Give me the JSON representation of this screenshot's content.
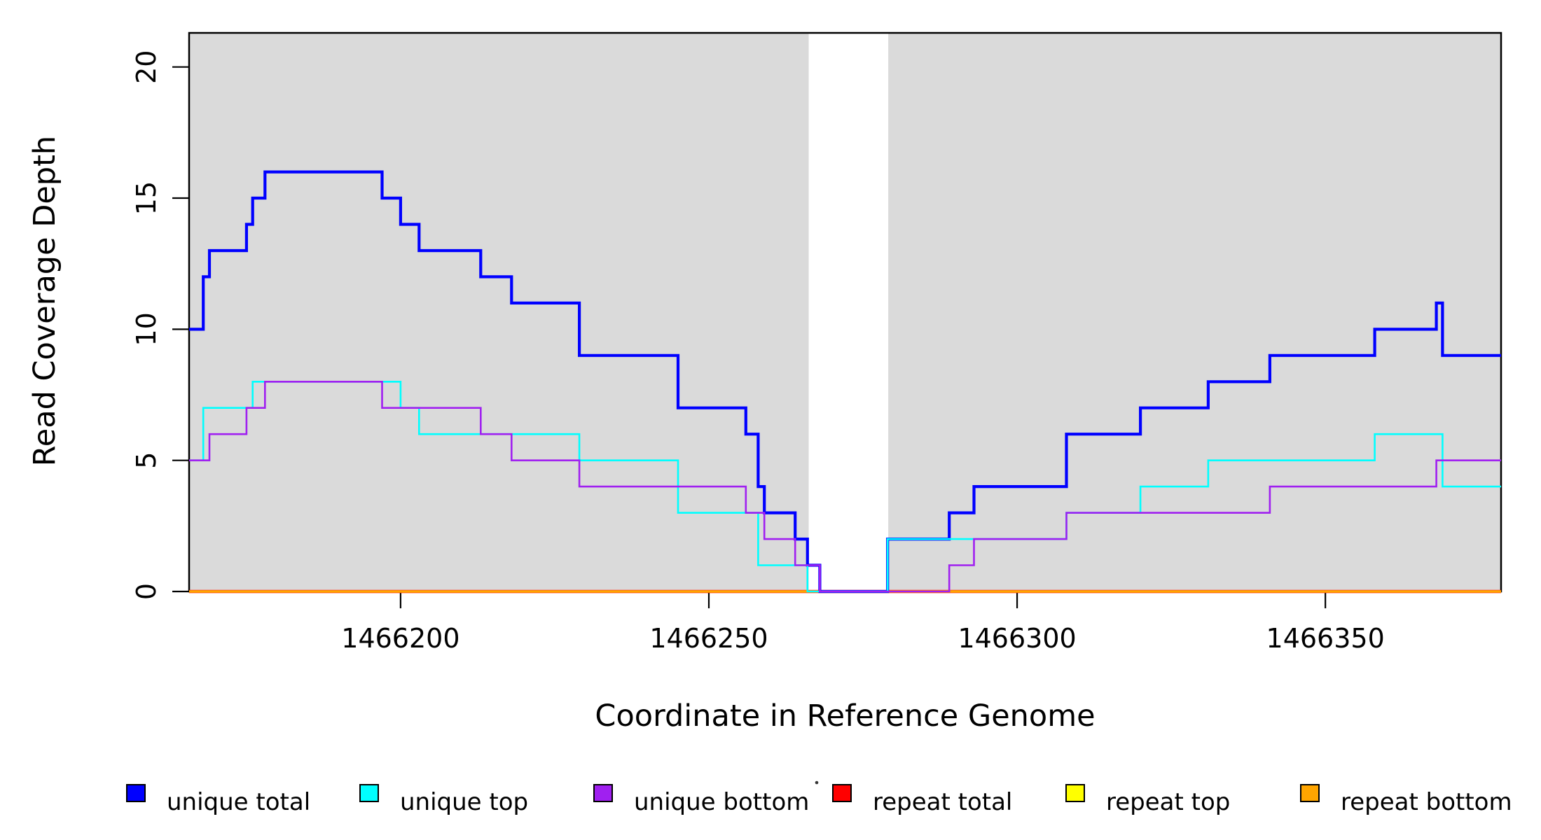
{
  "chart_data": {
    "type": "line",
    "subtype": "step-coverage-plot",
    "title": "",
    "xlabel": "Coordinate in Reference Genome",
    "ylabel": "Read Coverage Depth",
    "xlim": [
      1466165.7,
      1466378.5
    ],
    "ylim": [
      0,
      21.3
    ],
    "grid": false,
    "background_color": "#ffffff",
    "shaded_region_color": "#DADADA",
    "shaded_regions": [
      [
        1466165.7,
        1466266.2
      ],
      [
        1466279.1,
        1466378.5
      ]
    ],
    "x_ticks": [
      {
        "value": 1466200,
        "label": "1466200"
      },
      {
        "value": 1466250,
        "label": "1466250"
      },
      {
        "value": 1466300,
        "label": "1466300"
      },
      {
        "value": 1466350,
        "label": "1466350"
      }
    ],
    "y_ticks": [
      {
        "value": 0,
        "label": "0"
      },
      {
        "value": 5,
        "label": "5"
      },
      {
        "value": 10,
        "label": "10"
      },
      {
        "value": 15,
        "label": "15"
      },
      {
        "value": 20,
        "label": "20"
      }
    ],
    "series": [
      {
        "name": "unique total",
        "color": "#0000FF",
        "start_value": 10,
        "steps": [
          [
            1466168,
            12
          ],
          [
            1466169,
            13
          ],
          [
            1466175,
            14
          ],
          [
            1466176,
            15
          ],
          [
            1466178,
            16
          ],
          [
            1466197,
            15
          ],
          [
            1466200,
            14
          ],
          [
            1466203,
            13
          ],
          [
            1466213,
            12
          ],
          [
            1466218,
            11
          ],
          [
            1466229,
            9
          ],
          [
            1466245,
            7
          ],
          [
            1466256,
            6
          ],
          [
            1466258,
            4
          ],
          [
            1466259,
            3
          ],
          [
            1466264,
            2
          ],
          [
            1466266,
            1
          ],
          [
            1466268,
            0
          ],
          [
            1466279,
            2
          ],
          [
            1466289,
            3
          ],
          [
            1466293,
            4
          ],
          [
            1466308,
            6
          ],
          [
            1466320,
            7
          ],
          [
            1466331,
            8
          ],
          [
            1466341,
            9
          ],
          [
            1466358,
            10
          ],
          [
            1466368,
            11
          ],
          [
            1466369,
            9
          ]
        ]
      },
      {
        "name": "unique top",
        "color": "#00FFFF",
        "start_value": 5,
        "steps": [
          [
            1466168,
            7
          ],
          [
            1466176,
            8
          ],
          [
            1466200,
            7
          ],
          [
            1466203,
            6
          ],
          [
            1466229,
            5
          ],
          [
            1466245,
            3
          ],
          [
            1466258,
            1
          ],
          [
            1466266,
            0
          ],
          [
            1466279,
            2
          ],
          [
            1466308,
            3
          ],
          [
            1466320,
            4
          ],
          [
            1466331,
            5
          ],
          [
            1466358,
            6
          ],
          [
            1466369,
            4
          ]
        ]
      },
      {
        "name": "unique bottom",
        "color": "#A020F0",
        "start_value": 5,
        "steps": [
          [
            1466169,
            6
          ],
          [
            1466175,
            7
          ],
          [
            1466178,
            8
          ],
          [
            1466197,
            7
          ],
          [
            1466213,
            6
          ],
          [
            1466218,
            5
          ],
          [
            1466229,
            4
          ],
          [
            1466256,
            3
          ],
          [
            1466259,
            2
          ],
          [
            1466264,
            1
          ],
          [
            1466268,
            0
          ],
          [
            1466289,
            1
          ],
          [
            1466293,
            2
          ],
          [
            1466308,
            3
          ],
          [
            1466341,
            4
          ],
          [
            1466368,
            5
          ]
        ]
      },
      {
        "name": "repeat total",
        "color": "#FF0000",
        "start_value": 0,
        "steps": []
      },
      {
        "name": "repeat top",
        "color": "#FFFF00",
        "start_value": 0,
        "steps": []
      },
      {
        "name": "repeat bottom",
        "color": "#FFA500",
        "start_value": 0,
        "steps": []
      }
    ],
    "legend": {
      "position": "bottom",
      "entries": [
        {
          "label": "unique total",
          "color": "#0000FF"
        },
        {
          "label": "unique top",
          "color": "#00FFFF"
        },
        {
          "label": "unique bottom",
          "color": "#A020F0"
        },
        {
          "label": "repeat total",
          "color": "#FF0000"
        },
        {
          "label": "repeat top",
          "color": "#FFFF00"
        },
        {
          "label": "repeat bottom",
          "color": "#FFA500"
        }
      ]
    }
  }
}
